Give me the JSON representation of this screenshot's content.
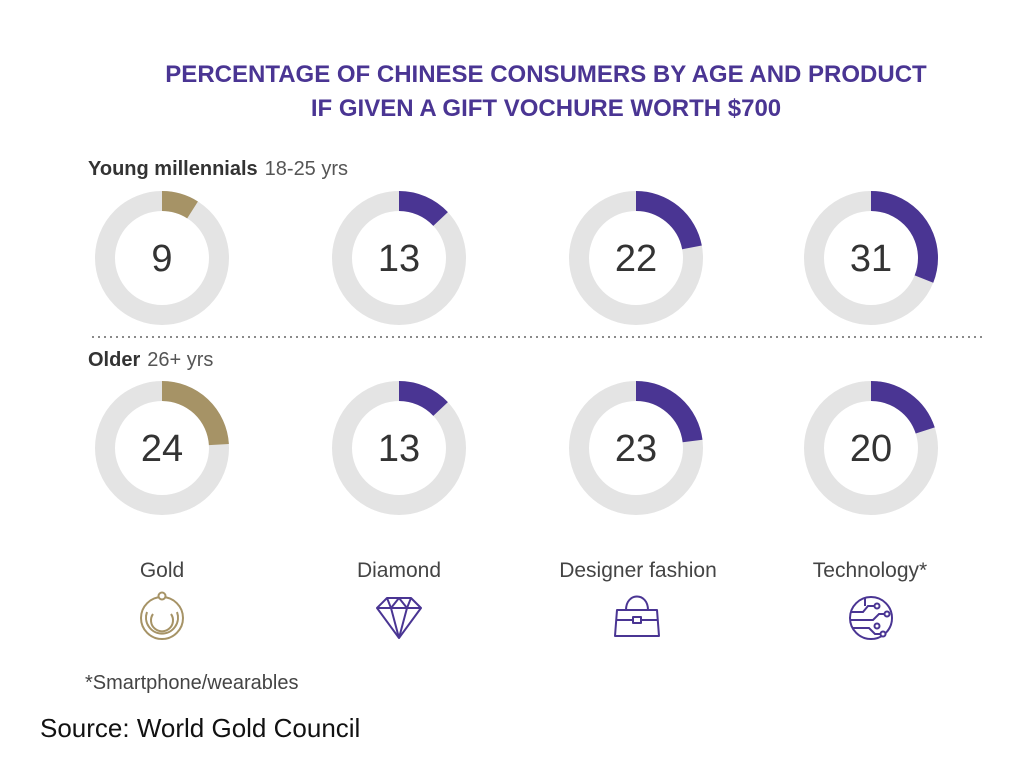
{
  "chart_data": {
    "type": "pie",
    "title_lines": [
      "PERCENTAGE OF CHINESE  CONSUMERS  BY AGE AND PRODUCT",
      "IF GIVEN A GIFT VOCHURE WORTH $700"
    ],
    "categories": [
      "Gold",
      "Diamond",
      "Designer fashion",
      "Technology*"
    ],
    "category_icons": [
      "gold-ring-icon",
      "diamond-icon",
      "handbag-icon",
      "circuit-globe-icon"
    ],
    "groups": [
      {
        "name_bold": "Young millennials",
        "name_light": "18-25 yrs",
        "values": [
          9,
          13,
          22,
          31
        ]
      },
      {
        "name_bold": "Older",
        "name_light": "26+ yrs",
        "values": [
          24,
          13,
          23,
          20
        ]
      }
    ],
    "max": 100,
    "footnote": "*Smartphone/wearables",
    "source": "Source: World Gold Council"
  },
  "colors": {
    "title": "#4a3593",
    "gold": "#a69366",
    "purple": "#4a3593",
    "track": "#e4e4e4"
  }
}
